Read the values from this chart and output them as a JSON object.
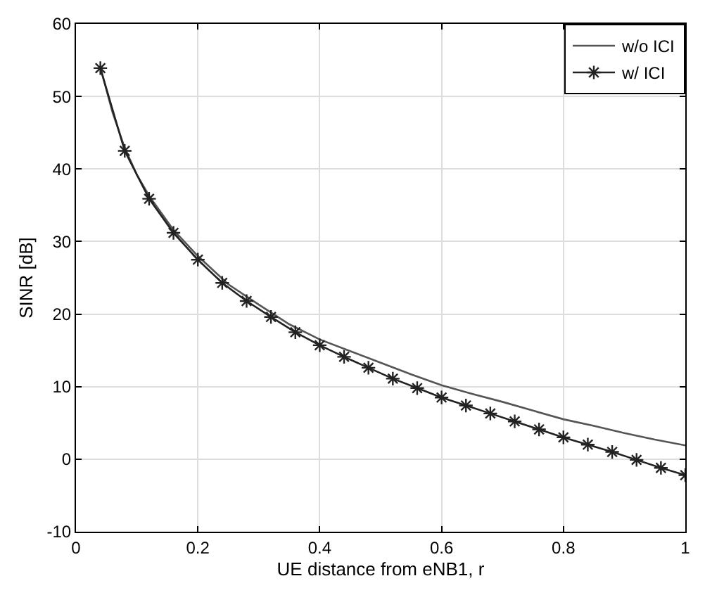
{
  "chart_data": {
    "type": "line",
    "xlabel": "UE distance from eNB1, r",
    "ylabel": "SINR [dB]",
    "xlim": [
      0,
      1
    ],
    "xticks": [
      0,
      0.2,
      0.4,
      0.6,
      0.8,
      1
    ],
    "ylim": [
      -10,
      60
    ],
    "yticks": [
      -10,
      0,
      10,
      20,
      30,
      40,
      50,
      60
    ],
    "grid": true,
    "legend": "top right",
    "series": [
      {
        "name": "w/o ICI",
        "color": "#555555",
        "marker": "none",
        "x": [
          0.04,
          0.06,
          0.08,
          0.1,
          0.12,
          0.16,
          0.2,
          0.25,
          0.3,
          0.35,
          0.4,
          0.45,
          0.5,
          0.55,
          0.6,
          0.65,
          0.7,
          0.75,
          0.8,
          0.85,
          0.9,
          0.95,
          1.0
        ],
        "values": [
          54.0,
          47.8,
          42.9,
          39.2,
          36.3,
          31.6,
          28.0,
          24.1,
          21.3,
          18.6,
          16.5,
          14.9,
          13.3,
          11.7,
          10.2,
          9.0,
          7.9,
          6.7,
          5.5,
          4.6,
          3.6,
          2.7,
          1.9
        ]
      },
      {
        "name": "w/ ICI",
        "color": "#222222",
        "marker": "cross",
        "x": [
          0.04,
          0.08,
          0.12,
          0.16,
          0.2,
          0.24,
          0.28,
          0.32,
          0.36,
          0.4,
          0.44,
          0.48,
          0.52,
          0.56,
          0.6,
          0.64,
          0.68,
          0.72,
          0.76,
          0.8,
          0.84,
          0.88,
          0.92,
          0.96,
          1.0
        ],
        "values": [
          53.9,
          42.5,
          35.9,
          31.2,
          27.5,
          24.3,
          21.8,
          19.6,
          17.5,
          15.7,
          14.1,
          12.6,
          11.1,
          9.8,
          8.5,
          7.4,
          6.3,
          5.2,
          4.1,
          3.0,
          2.0,
          1.0,
          -0.1,
          -1.2,
          -2.2
        ]
      }
    ]
  }
}
